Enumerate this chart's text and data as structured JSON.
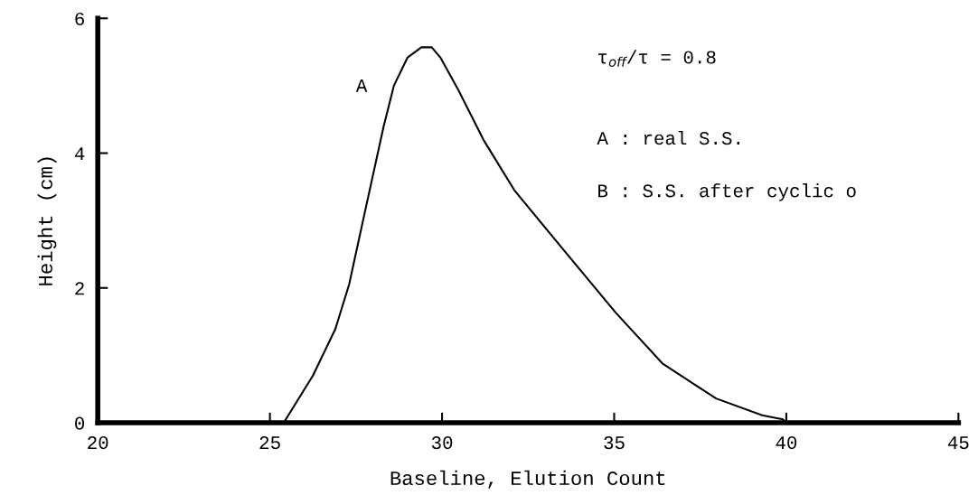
{
  "chart_data": {
    "type": "line",
    "xlabel": "Baseline, Elution Count",
    "ylabel": "Height (cm)",
    "x": [
      25.4,
      26.25,
      26.9,
      27.3,
      27.7,
      28.06,
      28.3,
      28.6,
      29.0,
      29.4,
      29.7,
      29.95,
      30.5,
      31.2,
      32.1,
      33.6,
      35.05,
      36.4,
      37.96,
      39.3,
      39.9,
      40
    ],
    "series": [
      {
        "color": "#000000",
        "values": [
          0,
          0.7,
          1.39,
          2.05,
          2.99,
          3.83,
          4.39,
          5.0,
          5.42,
          5.57,
          5.57,
          5.42,
          4.91,
          4.2,
          3.45,
          2.52,
          1.63,
          0.88,
          0.36,
          0.11,
          0.05,
          0
        ]
      }
    ],
    "xlim": [
      20,
      45
    ],
    "ylim": [
      0,
      6
    ],
    "xticks": [
      20,
      25,
      30,
      35,
      40,
      45
    ],
    "yticks": [
      0,
      2,
      4,
      6
    ],
    "grid": false,
    "legend": false,
    "marker": "none",
    "line_style": "solid",
    "annotations": [
      "A",
      "τ$_{off}$/τ = 0.8",
      "A : real S.S.",
      "B : S.S. after cyclic o"
    ]
  }
}
